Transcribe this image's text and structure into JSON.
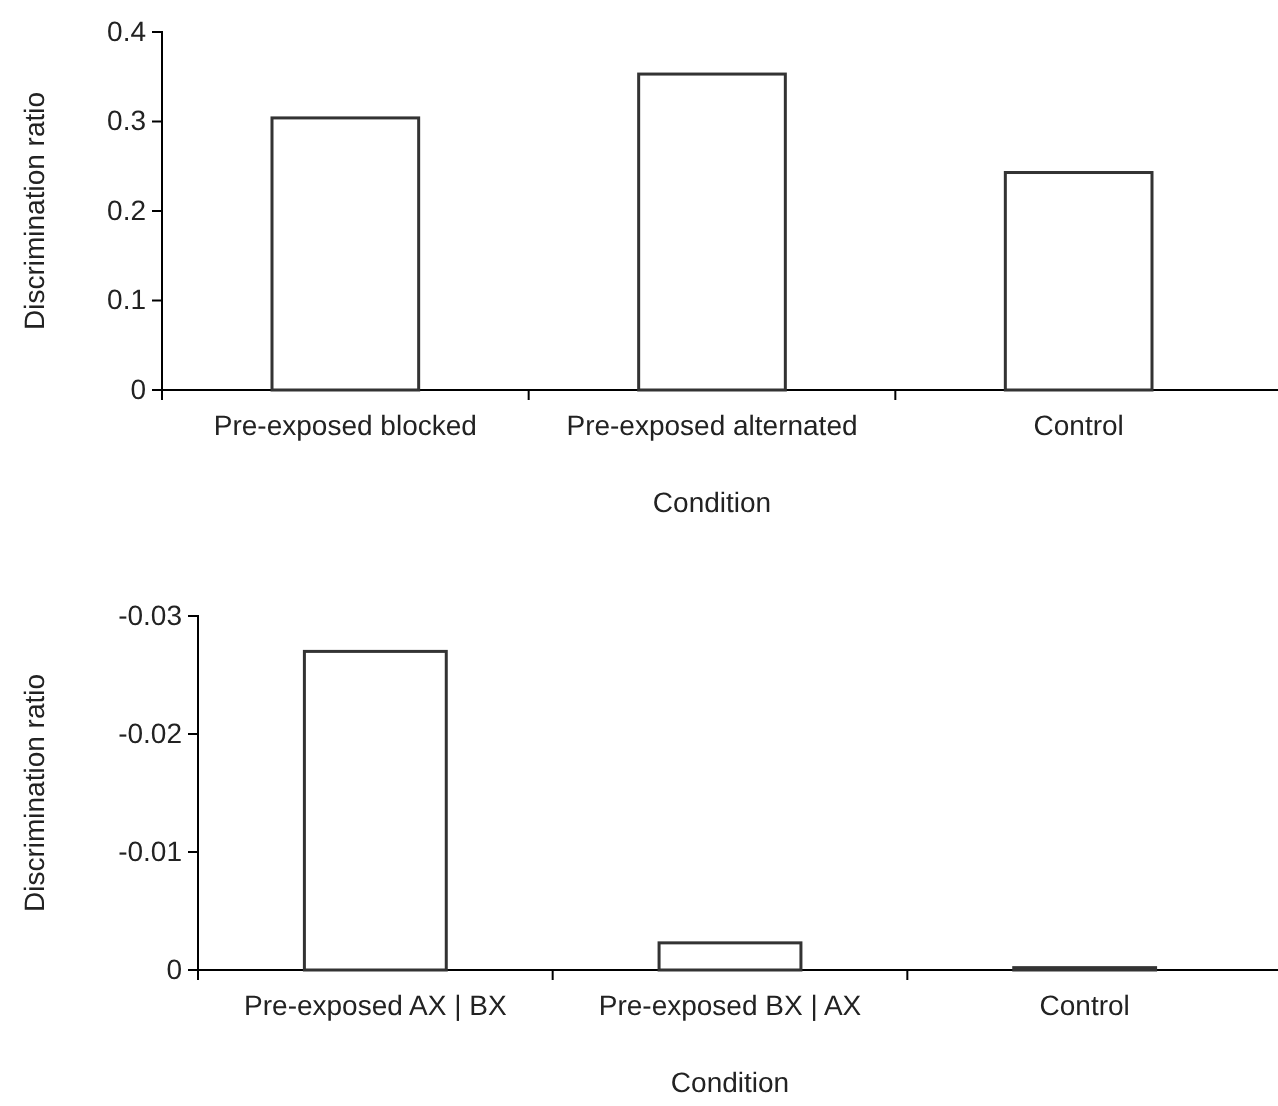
{
  "chart_data": [
    {
      "type": "bar",
      "xlabel": "Condition",
      "ylabel": "Discrimination ratio",
      "categories": [
        "Pre-exposed blocked",
        "Pre-exposed alternated",
        "Control"
      ],
      "values": [
        0.304,
        0.353,
        0.243
      ],
      "color": "#ffffff",
      "ylim": [
        0,
        0.4
      ],
      "yticks": [
        0,
        0.1,
        0.2,
        0.3,
        0.4
      ]
    },
    {
      "type": "bar",
      "xlabel": "Condition",
      "ylabel": "Discrimination ratio",
      "categories": [
        "Pre-exposed AX | BX",
        "Pre-exposed BX | AX",
        "Control"
      ],
      "values": [
        -0.027,
        -0.0023,
        -0.0002
      ],
      "color": "#ffffff",
      "ylim": [
        0,
        -0.03
      ],
      "yticks": [
        -0.03,
        -0.02,
        -0.01,
        0
      ]
    }
  ]
}
